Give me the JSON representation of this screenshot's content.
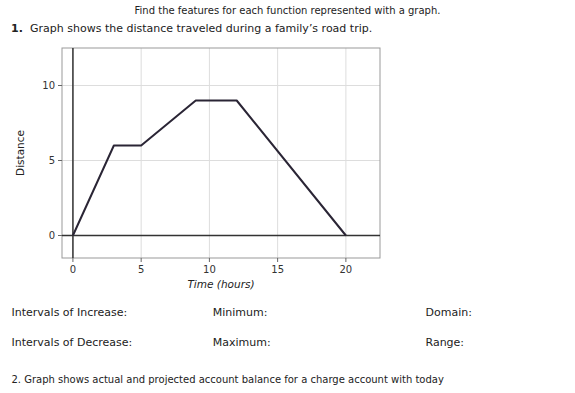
{
  "chart_data": {
    "type": "line",
    "title": "Graph shows the distance traveled during a family’s road trip.",
    "x_label": "Time (hours)",
    "y_label": "Distance",
    "annotations": [
      "Find the features for each function represented with a graph.",
      "1.",
      "Intervals of Increase:",
      "Minimum:",
      "Domain:",
      "Intervals of Decrease:",
      "Maximum:",
      "Range:",
      "2.  Graph shows actual and projected account balance for a charge account with today"
    ],
    "x": [
      0,
      3,
      5,
      9,
      12,
      20
    ],
    "series": [
      {
        "name": "Distance",
        "color": "#2a2535",
        "values": [
          0,
          6,
          6,
          9,
          9,
          0
        ]
      }
    ],
    "xlim": [
      -0.8,
      22.5
    ],
    "ylim": [
      -1.5,
      12.5
    ],
    "xticks": [
      0,
      5,
      10,
      15,
      20
    ],
    "yticks": [
      0,
      5,
      10
    ],
    "grid": true
  }
}
